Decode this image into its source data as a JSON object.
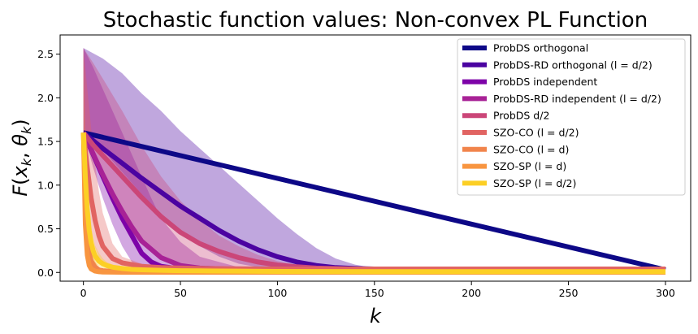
{
  "chart_data": {
    "type": "line",
    "title": "Stochastic function values: Non-convex PL Function",
    "xlabel": "k",
    "ylabel": "F(x_k, θ_k)",
    "xlim": [
      -12,
      313
    ],
    "ylim": [
      -0.1,
      2.72
    ],
    "xticks": [
      0,
      50,
      100,
      150,
      200,
      250,
      300
    ],
    "yticks": [
      0.0,
      0.5,
      1.0,
      1.5,
      2.0,
      2.5
    ],
    "xtick_labels": [
      "0",
      "50",
      "100",
      "150",
      "200",
      "250",
      "300"
    ],
    "ytick_labels": [
      "0.0",
      "0.5",
      "1.0",
      "1.5",
      "2.0",
      "2.5"
    ],
    "legend_position": "top-right",
    "grid": false,
    "series": [
      {
        "name": "ProbDS orthogonal",
        "color": "#0d0887",
        "x": [
          0,
          300
        ],
        "y": [
          1.6,
          0.03
        ]
      },
      {
        "name": "ProbDS-RD orthogonal (l = d/2)",
        "color": "#4b03a1",
        "x": [
          0,
          10,
          20,
          30,
          40,
          50,
          60,
          70,
          80,
          90,
          100,
          110,
          120,
          130,
          140,
          150,
          175,
          200,
          250,
          300
        ],
        "y": [
          1.6,
          1.42,
          1.25,
          1.08,
          0.92,
          0.76,
          0.62,
          0.48,
          0.36,
          0.26,
          0.18,
          0.12,
          0.08,
          0.055,
          0.045,
          0.04,
          0.035,
          0.033,
          0.03,
          0.03
        ],
        "band_upper": [
          2.57,
          2.45,
          2.28,
          2.05,
          1.85,
          1.62,
          1.42,
          1.22,
          1.02,
          0.82,
          0.62,
          0.44,
          0.28,
          0.16,
          0.09,
          0.05,
          0.04,
          0.035,
          0.03,
          0.03
        ],
        "band_lower": [
          1.6,
          1.4,
          1.15,
          0.9,
          0.67,
          0.46,
          0.3,
          0.18,
          0.1,
          0.06,
          0.04,
          0.03,
          0.03,
          0.03,
          0.03,
          0.03,
          0.03,
          0.03,
          0.03,
          0.03
        ]
      },
      {
        "name": "ProbDS independent",
        "color": "#7d03a8",
        "x": [
          0,
          5,
          10,
          15,
          20,
          25,
          30,
          35,
          40,
          50,
          60,
          80,
          100,
          150,
          200,
          250,
          300
        ],
        "y": [
          1.6,
          1.35,
          1.1,
          0.85,
          0.62,
          0.42,
          0.22,
          0.12,
          0.07,
          0.04,
          0.03,
          0.03,
          0.03,
          0.03,
          0.03,
          0.03,
          0.03
        ],
        "band_upper": [
          2.57,
          2.35,
          2.1,
          1.85,
          1.6,
          1.35,
          1.1,
          0.85,
          0.62,
          0.35,
          0.18,
          0.06,
          0.04,
          0.03,
          0.03,
          0.03,
          0.03
        ],
        "band_lower": [
          1.6,
          1.2,
          0.85,
          0.55,
          0.3,
          0.12,
          0.05,
          0.03,
          0.03,
          0.03,
          0.03,
          0.03,
          0.03,
          0.03,
          0.03,
          0.03,
          0.03
        ]
      },
      {
        "name": "ProbDS-RD independent (l = d/2)",
        "color": "#a82296",
        "x": [
          0,
          5,
          10,
          15,
          20,
          25,
          30,
          40,
          50,
          60,
          80,
          100,
          150,
          200,
          250,
          300
        ],
        "y": [
          1.6,
          1.36,
          1.12,
          0.9,
          0.7,
          0.52,
          0.36,
          0.17,
          0.08,
          0.05,
          0.035,
          0.03,
          0.03,
          0.03,
          0.03,
          0.03
        ]
      },
      {
        "name": "ProbDS d/2",
        "color": "#cb4678",
        "x": [
          0,
          5,
          10,
          20,
          30,
          40,
          50,
          60,
          70,
          80,
          90,
          100,
          110,
          120,
          140,
          150,
          175,
          200,
          250,
          300
        ],
        "y": [
          1.6,
          1.46,
          1.34,
          1.1,
          0.86,
          0.64,
          0.46,
          0.33,
          0.24,
          0.17,
          0.12,
          0.085,
          0.065,
          0.05,
          0.04,
          0.035,
          0.03,
          0.03,
          0.03,
          0.03
        ],
        "band_upper": [
          2.57,
          2.4,
          2.22,
          1.85,
          1.45,
          1.1,
          0.82,
          0.6,
          0.42,
          0.3,
          0.2,
          0.13,
          0.09,
          0.065,
          0.045,
          0.04,
          0.035,
          0.03,
          0.03,
          0.03
        ],
        "band_lower": [
          1.6,
          1.32,
          1.08,
          0.66,
          0.36,
          0.17,
          0.08,
          0.04,
          0.03,
          0.03,
          0.03,
          0.03,
          0.03,
          0.03,
          0.03,
          0.03,
          0.03,
          0.03,
          0.03,
          0.03
        ]
      },
      {
        "name": "SZO-CO (l = d/2)",
        "color": "#e16462",
        "x": [
          0,
          2,
          4,
          6,
          8,
          10,
          15,
          20,
          30,
          40,
          60,
          100,
          150,
          200,
          250,
          300
        ],
        "y": [
          1.6,
          1.2,
          0.85,
          0.6,
          0.42,
          0.3,
          0.16,
          0.11,
          0.07,
          0.055,
          0.045,
          0.04,
          0.04,
          0.04,
          0.04,
          0.04
        ],
        "band_upper": [
          2.57,
          2.1,
          1.65,
          1.25,
          0.92,
          0.68,
          0.33,
          0.18,
          0.1,
          0.07,
          0.055,
          0.045,
          0.045,
          0.045,
          0.045,
          0.045
        ],
        "band_lower": [
          1.6,
          0.9,
          0.5,
          0.28,
          0.16,
          0.1,
          0.06,
          0.045,
          0.04,
          0.035,
          0.035,
          0.035,
          0.035,
          0.035,
          0.035,
          0.035
        ]
      },
      {
        "name": "SZO-CO (l = d)",
        "color": "#f1844b",
        "x": [
          0,
          1,
          2,
          3,
          4,
          6,
          8,
          10,
          15,
          20,
          30,
          50,
          100,
          300
        ],
        "y": [
          1.6,
          0.8,
          0.4,
          0.22,
          0.13,
          0.06,
          0.03,
          0.02,
          0.012,
          0.01,
          0.01,
          0.01,
          0.01,
          0.01
        ],
        "band_upper": [
          2.57,
          1.6,
          0.9,
          0.5,
          0.3,
          0.13,
          0.06,
          0.035,
          0.018,
          0.012,
          0.01,
          0.01,
          0.01,
          0.01
        ],
        "band_lower": [
          1.6,
          0.5,
          0.18,
          0.07,
          0.03,
          0.012,
          0.008,
          0.006,
          0.005,
          0.005,
          0.005,
          0.005,
          0.005,
          0.005
        ]
      },
      {
        "name": "SZO-SP (l = d)",
        "color": "#f89540",
        "x": [
          0,
          1,
          2,
          3,
          4,
          6,
          8,
          10,
          15,
          20,
          50,
          300
        ],
        "y": [
          1.6,
          0.55,
          0.2,
          0.08,
          0.04,
          0.015,
          0.008,
          0.005,
          0.003,
          0.002,
          0.002,
          0.002
        ]
      },
      {
        "name": "SZO-SP (l = d/2)",
        "color": "#fccf25",
        "x": [
          0,
          1,
          2,
          3,
          4,
          5,
          6,
          8,
          10,
          12,
          15,
          20,
          25,
          30,
          40,
          50,
          60,
          80,
          100,
          150,
          200,
          300
        ],
        "y": [
          1.6,
          1.1,
          0.72,
          0.48,
          0.34,
          0.25,
          0.19,
          0.13,
          0.1,
          0.08,
          0.06,
          0.045,
          0.035,
          0.03,
          0.025,
          0.02,
          0.018,
          0.015,
          0.012,
          0.01,
          0.01,
          0.01
        ],
        "band_upper": [
          1.62,
          1.3,
          0.95,
          0.7,
          0.52,
          0.4,
          0.31,
          0.22,
          0.16,
          0.12,
          0.09,
          0.065,
          0.05,
          0.04,
          0.03,
          0.025,
          0.02,
          0.017,
          0.014,
          0.012,
          0.012,
          0.012
        ],
        "band_lower": [
          1.55,
          0.9,
          0.52,
          0.3,
          0.2,
          0.14,
          0.1,
          0.07,
          0.05,
          0.04,
          0.03,
          0.022,
          0.018,
          0.015,
          0.012,
          0.01,
          0.009,
          0.008,
          0.007,
          0.006,
          0.006,
          0.006
        ]
      }
    ]
  }
}
